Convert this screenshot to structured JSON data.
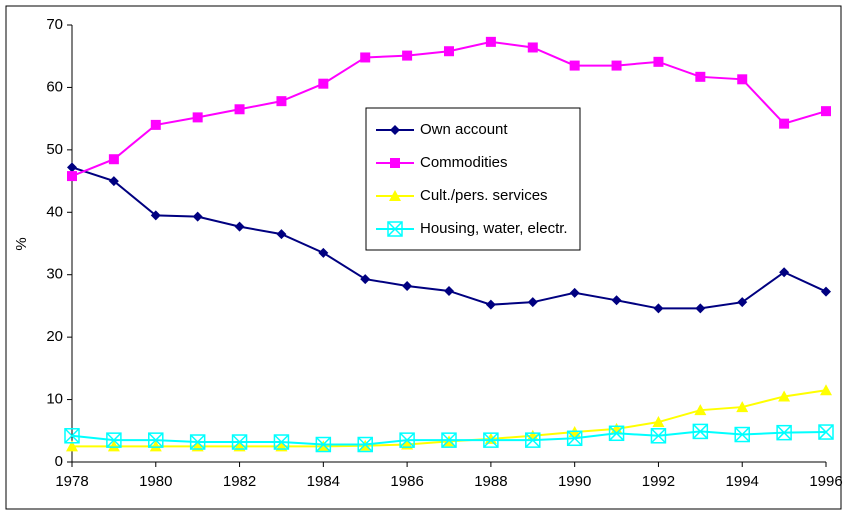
{
  "chart_data": {
    "type": "line",
    "y_label": "%",
    "x": [
      1978,
      1979,
      1980,
      1981,
      1982,
      1983,
      1984,
      1985,
      1986,
      1987,
      1988,
      1989,
      1990,
      1991,
      1992,
      1993,
      1994,
      1995,
      1996
    ],
    "series": [
      {
        "name": "Own account",
        "color": "#000080",
        "marker": "diamond",
        "values": [
          47.2,
          45,
          39.5,
          39.3,
          37.7,
          36.5,
          33.5,
          29.3,
          28.2,
          27.4,
          25.2,
          25.6,
          27.1,
          25.9,
          24.6,
          24.6,
          25.6,
          30.4,
          27.3
        ]
      },
      {
        "name": "Commodities",
        "color": "#ff00ff",
        "marker": "square",
        "values": [
          45.8,
          48.5,
          54,
          55.2,
          56.5,
          57.8,
          60.6,
          64.8,
          65.1,
          65.8,
          67.3,
          66.4,
          63.5,
          63.5,
          64.1,
          61.7,
          61.3,
          54.2,
          56.2
        ]
      },
      {
        "name": "Cult./pers. services",
        "color": "#ffff00",
        "marker": "triangle",
        "values": [
          2.5,
          2.5,
          2.5,
          2.5,
          2.5,
          2.5,
          2.5,
          2.6,
          2.8,
          3.3,
          3.7,
          4.2,
          4.8,
          5.3,
          6.4,
          8.3,
          8.8,
          10.5,
          11.5
        ]
      },
      {
        "name": "Housing, water, electr.",
        "color": "#00ffff",
        "marker": "xsquare",
        "values": [
          4.2,
          3.5,
          3.5,
          3.2,
          3.2,
          3.2,
          2.8,
          2.8,
          3.5,
          3.5,
          3.5,
          3.5,
          3.8,
          4.6,
          4.2,
          4.9,
          4.4,
          4.7,
          4.8
        ]
      }
    ],
    "xlim": [
      1978,
      1996
    ],
    "xticks": [
      1978,
      1980,
      1982,
      1984,
      1986,
      1988,
      1990,
      1992,
      1994,
      1996
    ],
    "ylim": [
      0,
      70
    ],
    "yticks": [
      0,
      10,
      20,
      30,
      40,
      50,
      60,
      70
    ],
    "grid": false
  }
}
